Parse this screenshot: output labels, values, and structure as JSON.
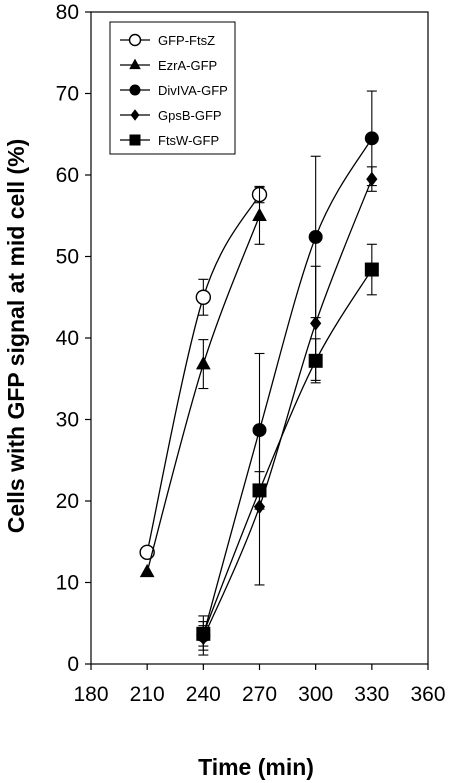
{
  "chart_data": {
    "type": "line",
    "title": "",
    "xlabel": "Time (min)",
    "ylabel": "Cells with GFP signal at mid cell (%)",
    "xlim": [
      180,
      360
    ],
    "ylim": [
      0,
      80
    ],
    "xticks": [
      180,
      210,
      240,
      270,
      300,
      330,
      360
    ],
    "yticks": [
      0,
      10,
      20,
      30,
      40,
      50,
      60,
      70,
      80
    ],
    "grid": false,
    "legend_position": "top-left",
    "series": [
      {
        "name": "GFP-FtsZ",
        "marker": "circle-open",
        "x": [
          210,
          240,
          270
        ],
        "y": [
          13.7,
          45,
          57.6
        ],
        "err": [
          0,
          2.2,
          1.0
        ]
      },
      {
        "name": "EzrA-GFP",
        "marker": "triangle",
        "x": [
          210,
          240,
          270
        ],
        "y": [
          11.3,
          36.8,
          55
        ],
        "err": [
          0,
          3.0,
          3.5
        ]
      },
      {
        "name": "DivIVA-GFP",
        "marker": "circle",
        "x": [
          240,
          270,
          300,
          330
        ],
        "y": [
          3.5,
          28.7,
          52.4,
          64.5
        ],
        "err": [
          2.4,
          9.4,
          9.9,
          5.8
        ]
      },
      {
        "name": "GpsB-GFP",
        "marker": "diamond",
        "x": [
          240,
          270,
          300,
          330
        ],
        "y": [
          3.2,
          19.3,
          41.8,
          59.5
        ],
        "err": [
          1.5,
          9.6,
          7.0,
          1.5
        ]
      },
      {
        "name": "FtsW-GFP",
        "marker": "square",
        "x": [
          240,
          270,
          300,
          330
        ],
        "y": [
          3.7,
          21.3,
          37.2,
          48.4
        ],
        "err": [
          1.5,
          2.3,
          2.7,
          3.1
        ]
      }
    ]
  }
}
